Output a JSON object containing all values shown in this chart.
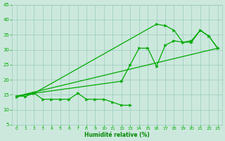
{
  "background_color": "#cce8dd",
  "grid_color": "#99ccbb",
  "line_color": "#00aa00",
  "marker_color": "#00aa00",
  "xlabel": "Humidité relative (%)",
  "xlabel_color": "#008800",
  "tick_color": "#00aa00",
  "xlim_min": -0.5,
  "xlim_max": 23.5,
  "ylim_min": 5,
  "ylim_max": 45,
  "yticks": [
    5,
    10,
    15,
    20,
    25,
    30,
    35,
    40,
    45
  ],
  "xticks": [
    0,
    1,
    2,
    3,
    4,
    5,
    6,
    7,
    8,
    9,
    10,
    11,
    12,
    13,
    14,
    15,
    16,
    17,
    18,
    19,
    20,
    21,
    22,
    23
  ],
  "line1_x": [
    0,
    1,
    2,
    3,
    4,
    5,
    6,
    7,
    8,
    9,
    10,
    11,
    12,
    13
  ],
  "line1_y": [
    14.5,
    14.5,
    15.5,
    13.5,
    13.5,
    13.5,
    13.5,
    15.5,
    13.5,
    13.5,
    13.5,
    12.5,
    11.5,
    11.5
  ],
  "line2_x": [
    0,
    2,
    12,
    13,
    14,
    15,
    16,
    17,
    18,
    19,
    20,
    21,
    22,
    23
  ],
  "line2_y": [
    14.5,
    15.5,
    19.5,
    25.0,
    30.5,
    30.5,
    24.5,
    31.5,
    33.0,
    32.5,
    33.0,
    36.5,
    34.5,
    30.5
  ],
  "line3_x": [
    0,
    2,
    16,
    17,
    18,
    19,
    20,
    21,
    22,
    23
  ],
  "line3_y": [
    14.5,
    15.5,
    38.5,
    38.0,
    36.5,
    32.5,
    32.5,
    36.5,
    34.5,
    30.5
  ]
}
